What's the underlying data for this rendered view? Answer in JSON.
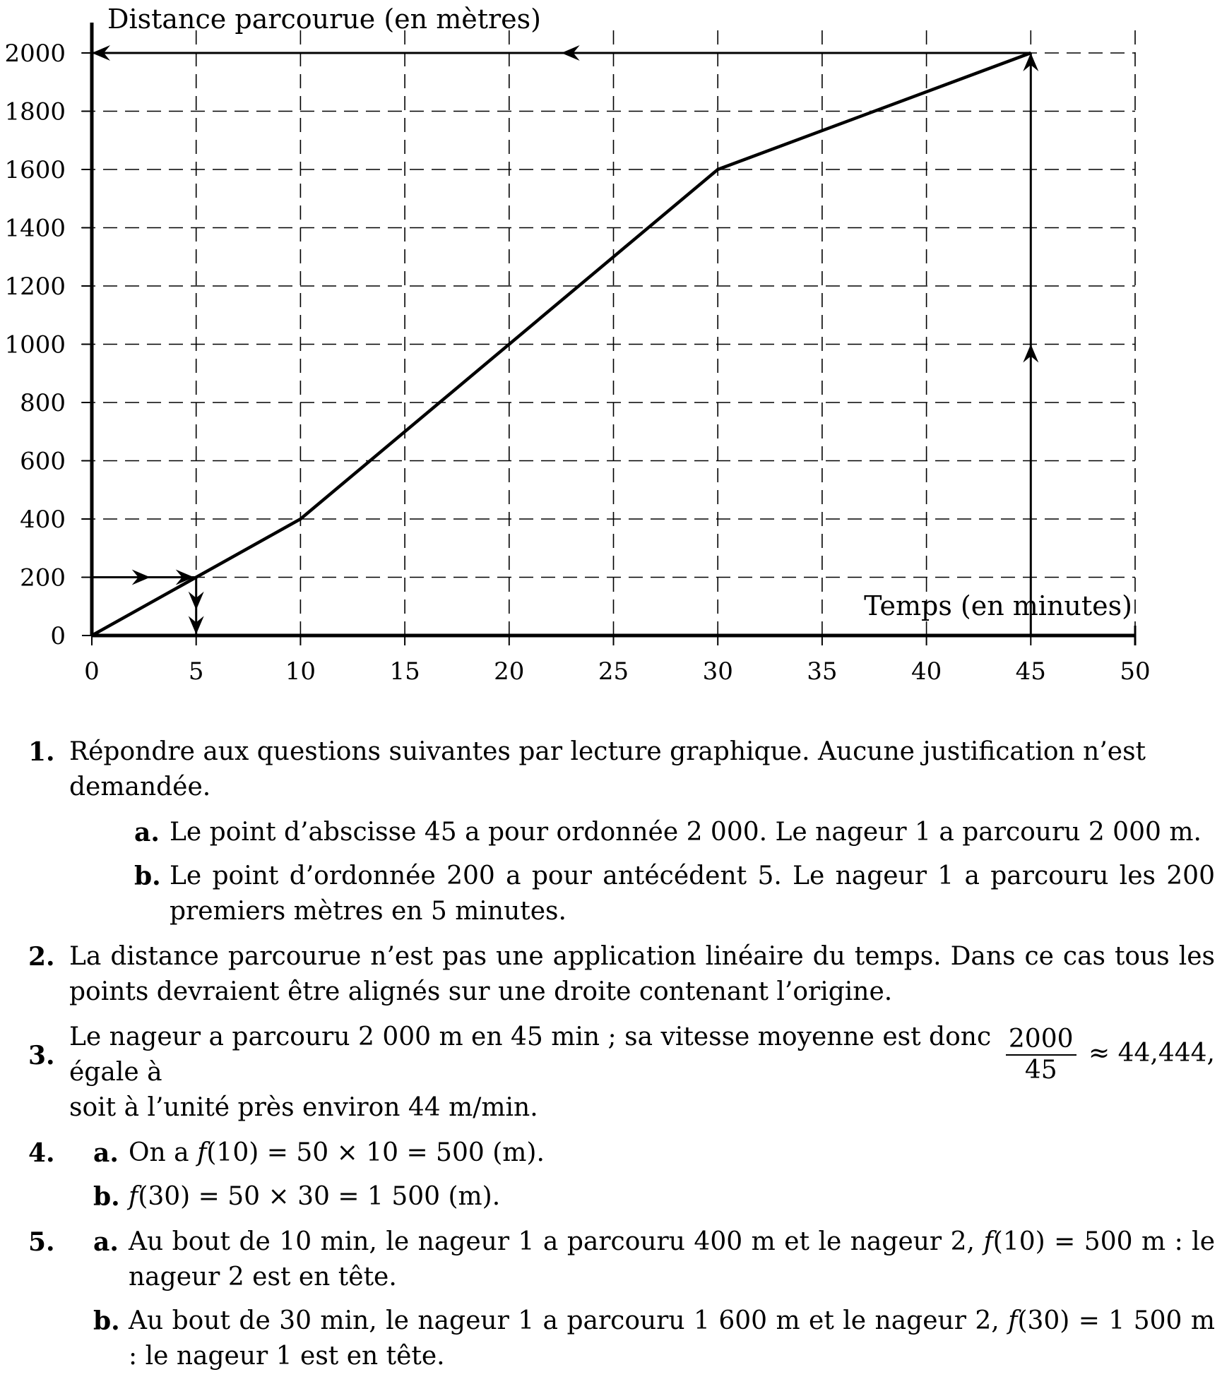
{
  "chart_data": {
    "type": "line",
    "ylabel": "Distance parcourue (en mètres)",
    "xlabel": "Temps (en minutes)",
    "xlim": [
      0,
      50
    ],
    "ylim": [
      0,
      2000
    ],
    "x_ticks": [
      "0",
      "5",
      "10",
      "15",
      "20",
      "25",
      "30",
      "35",
      "40",
      "45",
      "50"
    ],
    "y_ticks": [
      "0",
      "200",
      "400",
      "600",
      "800",
      "1000",
      "1200",
      "1400",
      "1600",
      "1800",
      "2000"
    ],
    "grid": true,
    "series": [
      {
        "x": [
          0,
          10,
          30,
          45
        ],
        "y": [
          0,
          400,
          1600,
          2000
        ]
      }
    ],
    "reading_lines": [
      {
        "from": [
          0,
          200
        ],
        "to": [
          5,
          200
        ]
      },
      {
        "from": [
          5,
          200
        ],
        "to": [
          5,
          0
        ]
      },
      {
        "from": [
          45,
          0
        ],
        "to": [
          45,
          2000
        ]
      },
      {
        "from": [
          45,
          2000
        ],
        "to": [
          0,
          2000
        ]
      }
    ]
  },
  "answers": {
    "q1": {
      "num": "1.",
      "text": "Répondre aux questions suivantes par lecture graphique. Aucune justification n’est demandée.",
      "a_label": "a.",
      "a_text": "Le point d’abscisse 45 a pour ordonnée 2 000. Le nageur 1 a parcouru 2 000 m.",
      "b_label": "b.",
      "b_text": "Le point d’ordonnée 200 a pour antécédent 5. Le nageur 1 a parcouru les 200 premiers mètres en 5 minutes."
    },
    "q2": {
      "num": "2.",
      "text": "La distance parcourue n’est pas une application linéaire du temps. Dans ce cas tous les points devraient être alignés sur une droite contenant l’origine."
    },
    "q3": {
      "num": "3.",
      "text_before": "Le nageur a parcouru 2 000 m en 45 min ; sa vitesse moyenne est donc égale à",
      "frac_num": "2000",
      "frac_den": "45",
      "text_after": "≈ 44,444,",
      "text_line2": "soit à l’unité près environ 44 m/min."
    },
    "q4": {
      "num": "4.",
      "a_label": "a.",
      "a_text_1": "On a",
      "a_f": "f",
      "a_text_2": "(10) = 50 × 10 = 500 (m).",
      "b_label": "b.",
      "b_f": "f",
      "b_text": "(30) = 50 × 30 = 1 500 (m)."
    },
    "q5": {
      "num": "5.",
      "a_label": "a.",
      "a_text_1": "Au bout de 10 min, le nageur 1 a parcouru 400 m et le nageur 2,",
      "a_f": "f",
      "a_text_2": "(10) = 500 m : le nageur 2 est en tête.",
      "b_label": "b.",
      "b_text_1": "Au bout de 30 min, le nageur 1 a parcouru 1 600 m et le nageur 2,",
      "b_f": "f",
      "b_text_2": "(30) = 1 500 m : le nageur 1 est en tête."
    }
  }
}
